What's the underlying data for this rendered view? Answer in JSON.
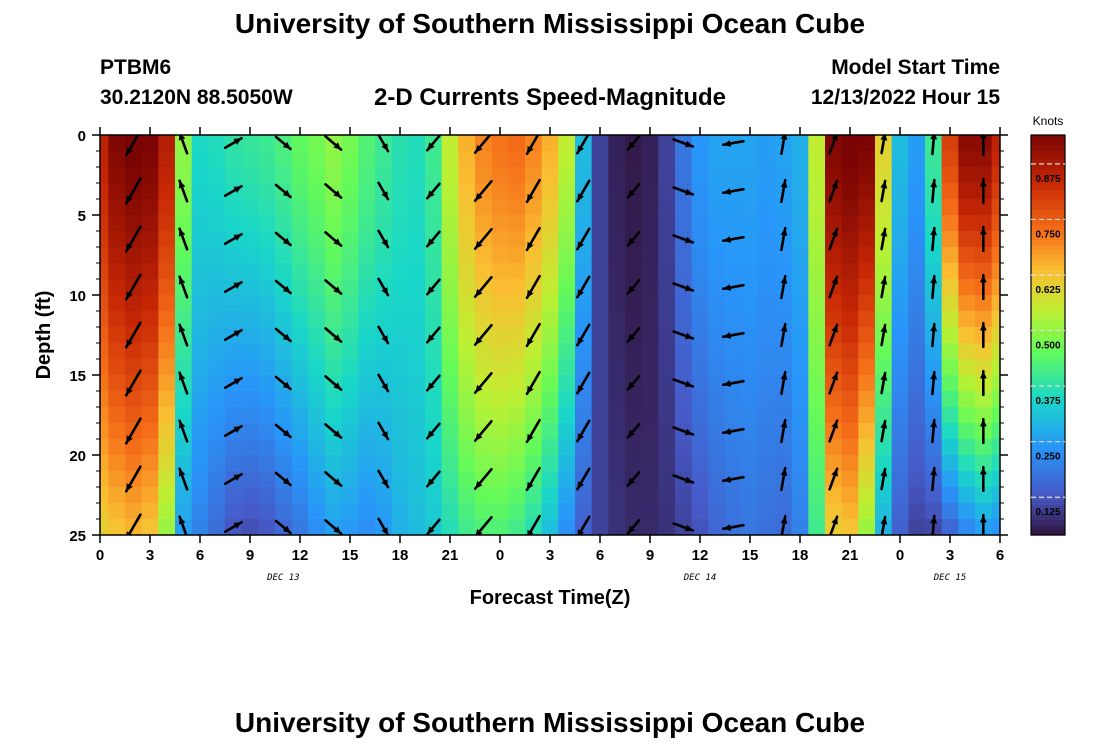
{
  "header": {
    "title": "University of Southern Mississippi Ocean Cube",
    "station_id": "PTBM6",
    "coords": "30.2120N  88.5050W",
    "plot_title": "2-D Currents Speed-Magnitude",
    "model_label": "Model Start Time",
    "model_time": "12/13/2022 Hour 15"
  },
  "footer": {
    "title": "University of Southern Mississippi Ocean Cube"
  },
  "chart_data": {
    "type": "heatmap",
    "title": "2-D Currents Speed-Magnitude",
    "xlabel": "Forecast Time(Z)",
    "ylabel": "Depth (ft)",
    "colorbar_label": "Knots",
    "x_range_hours": [
      0,
      54
    ],
    "ylim": [
      25,
      0
    ],
    "x_ticks": [
      "0",
      "3",
      "6",
      "9",
      "12",
      "15",
      "18",
      "21",
      "0",
      "3",
      "6",
      "9",
      "12",
      "15",
      "18",
      "21",
      "0",
      "3",
      "6"
    ],
    "y_ticks": [
      "0",
      "5",
      "10",
      "15",
      "20",
      "25"
    ],
    "date_labels": [
      {
        "label": "DEC 13",
        "hour": 11
      },
      {
        "label": "DEC 14",
        "hour": 36
      },
      {
        "label": "DEC 15",
        "hour": 51
      }
    ],
    "colorbar_ticks": [
      "0.875",
      "0.750",
      "0.625",
      "0.500",
      "0.375",
      "0.250",
      "0.125"
    ],
    "colorbar_values": [
      0.875,
      0.75,
      0.625,
      0.5,
      0.375,
      0.25,
      0.125
    ],
    "colorbar_range": [
      0.04,
      0.94
    ],
    "speed_profile": {
      "hours": [
        0,
        1,
        2,
        3,
        4,
        5,
        6,
        7,
        8,
        9,
        10,
        11,
        12,
        13,
        14,
        15,
        16,
        17,
        18,
        19,
        20,
        21,
        22,
        23,
        24,
        25,
        26,
        27,
        28,
        29,
        30,
        31,
        32,
        33,
        34,
        35,
        36,
        37,
        38,
        39,
        40,
        41,
        42,
        43,
        44,
        45,
        46,
        47,
        48,
        49,
        50,
        51,
        52,
        53,
        54
      ],
      "surface_knots": [
        0.85,
        0.93,
        0.95,
        0.94,
        0.86,
        0.5,
        0.35,
        0.36,
        0.38,
        0.39,
        0.4,
        0.42,
        0.45,
        0.47,
        0.5,
        0.47,
        0.43,
        0.4,
        0.37,
        0.36,
        0.4,
        0.55,
        0.65,
        0.7,
        0.72,
        0.73,
        0.7,
        0.65,
        0.55,
        0.3,
        0.1,
        0.06,
        0.05,
        0.06,
        0.1,
        0.18,
        0.24,
        0.26,
        0.26,
        0.26,
        0.25,
        0.26,
        0.28,
        0.55,
        0.93,
        0.95,
        0.94,
        0.6,
        0.3,
        0.25,
        0.4,
        0.8,
        0.92,
        0.92,
        0.85
      ],
      "bottom_knots": [
        0.6,
        0.62,
        0.64,
        0.62,
        0.5,
        0.25,
        0.2,
        0.16,
        0.12,
        0.11,
        0.12,
        0.15,
        0.18,
        0.22,
        0.25,
        0.24,
        0.22,
        0.24,
        0.28,
        0.3,
        0.32,
        0.36,
        0.4,
        0.42,
        0.42,
        0.4,
        0.36,
        0.3,
        0.22,
        0.14,
        0.1,
        0.08,
        0.07,
        0.07,
        0.08,
        0.1,
        0.12,
        0.15,
        0.17,
        0.18,
        0.17,
        0.16,
        0.2,
        0.4,
        0.6,
        0.62,
        0.5,
        0.28,
        0.14,
        0.1,
        0.1,
        0.14,
        0.2,
        0.24,
        0.22
      ]
    },
    "vector_times": [
      2,
      5,
      8,
      11,
      14,
      17,
      20,
      23,
      26,
      29,
      32,
      35,
      38,
      41,
      44,
      47,
      50,
      53
    ],
    "vector_depths": [
      0.5,
      3.5,
      6.5,
      9.5,
      12.5,
      15.5,
      18.5,
      21.5,
      24.5
    ],
    "vector_directions_deg": [
      210,
      340,
      60,
      130,
      130,
      150,
      220,
      220,
      210,
      210,
      220,
      110,
      260,
      10,
      20,
      10,
      5,
      0
    ],
    "vector_magnitude_scale_knots": [
      0.9,
      0.5,
      0.3,
      0.3,
      0.4,
      0.3,
      0.3,
      0.7,
      0.7,
      0.6,
      0.2,
      0.4,
      0.4,
      0.5,
      0.5,
      0.4,
      0.5,
      0.6
    ]
  },
  "colors": {
    "background": "#ffffff",
    "arrow": "#000000",
    "axis": "#000000"
  }
}
